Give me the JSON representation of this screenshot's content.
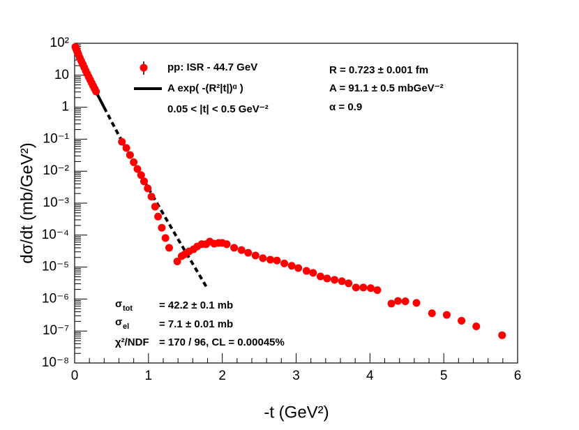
{
  "chart_data": {
    "type": "scatter",
    "x_label": "-t (GeV²)",
    "y_label": "dσ/dt (mb/GeV²)",
    "log_y": true,
    "xlim": [
      0,
      6
    ],
    "xticks": [
      0,
      1,
      2,
      3,
      4,
      5,
      6
    ],
    "ylim": [
      1e-08,
      100
    ],
    "yticks": [
      {
        "value": 1e-08,
        "label": "10⁻⁸"
      },
      {
        "value": 1e-07,
        "label": "10⁻⁷"
      },
      {
        "value": 1e-06,
        "label": "10⁻⁶"
      },
      {
        "value": 1e-05,
        "label": "10⁻⁵"
      },
      {
        "value": 0.0001,
        "label": "10⁻⁴"
      },
      {
        "value": 0.001,
        "label": "10⁻³"
      },
      {
        "value": 0.01,
        "label": "10⁻²"
      },
      {
        "value": 0.1,
        "label": "10⁻¹"
      },
      1,
      10,
      {
        "value": 100,
        "label": "10²"
      }
    ],
    "series": [
      {
        "name": "pp: ISR - 44.7 GeV",
        "color": "#ff0000",
        "x": [
          0.01,
          0.02,
          0.03,
          0.04,
          0.05,
          0.07,
          0.09,
          0.11,
          0.13,
          0.15,
          0.17,
          0.19,
          0.21,
          0.23,
          0.25,
          0.27,
          0.29,
          0.64,
          0.7,
          0.75,
          0.8,
          0.85,
          0.9,
          0.94,
          0.99,
          1.04,
          1.09,
          1.13,
          1.18,
          1.23,
          1.28,
          1.39,
          1.45,
          1.49,
          1.55,
          1.61,
          1.66,
          1.72,
          1.78,
          1.83,
          1.89,
          1.95,
          2.0,
          2.06,
          2.16,
          2.26,
          2.35,
          2.45,
          2.55,
          2.65,
          2.74,
          2.84,
          2.94,
          3.03,
          3.14,
          3.23,
          3.33,
          3.42,
          3.52,
          3.62,
          3.71,
          3.81,
          3.91,
          4.01,
          4.1,
          4.29,
          4.38,
          4.48,
          4.63,
          4.84,
          5.04,
          5.24,
          5.44,
          5.79
        ],
        "values": [
          77,
          67,
          59,
          51.5,
          45.2,
          35.3,
          27.8,
          22,
          17.5,
          13.9,
          11.1,
          8.9,
          7.2,
          5.8,
          4.7,
          3.8,
          3.1,
          0.083,
          0.053,
          0.032,
          0.019,
          0.0117,
          0.0075,
          0.0048,
          0.0029,
          0.0016,
          0.00078,
          0.00038,
          0.00017,
          8.1e-05,
          4e-05,
          1.5e-05,
          2.2e-05,
          2.5e-05,
          3.1e-05,
          3.6e-05,
          4.4e-05,
          5.2e-05,
          5.2e-05,
          6.3e-05,
          5.4e-05,
          5.7e-05,
          5.7e-05,
          5.2e-05,
          4e-05,
          3.4e-05,
          2.8e-05,
          2.3e-05,
          1.9e-05,
          1.7e-05,
          1.6e-05,
          1.3e-05,
          1.1e-05,
          9.3e-06,
          7.6e-06,
          6.6e-06,
          5.1e-06,
          4.4e-06,
          4e-06,
          3.6e-06,
          3.1e-06,
          2.3e-06,
          2.3e-06,
          2.2e-06,
          1.9e-06,
          7.2e-07,
          8.7e-07,
          8.5e-07,
          7.6e-07,
          3.6e-07,
          3.2e-07,
          2.1e-07,
          1.4e-07,
          7.4e-08
        ]
      }
    ],
    "fit": {
      "name": "A exp( -(R²|t|)ᵅ )",
      "color": "#000000",
      "pieces": [
        {
          "style": "solid",
          "x": [
            0,
            0.1,
            0.2,
            0.3,
            0.4
          ],
          "values": [
            91.1,
            24.8,
            8.0,
            2.73,
            0.98
          ]
        },
        {
          "style": "dashed",
          "x": [
            0.4,
            0.6,
            0.8,
            1.0,
            1.2,
            1.4,
            1.6,
            1.8
          ],
          "values": [
            0.98,
            0.13,
            0.0193,
            0.0029,
            0.00046,
            7.5e-05,
            1.26e-05,
            2.1e-06
          ]
        }
      ]
    },
    "fit_range": "0.05 < |t| < 0.5 GeV⁻²",
    "parameters": [
      "R = 0.723 ± 0.001 fm",
      "A = 91.1 ± 0.5 mbGeV⁻²",
      "α  = 0.9"
    ],
    "results": [
      {
        "symbol": "σ",
        "sub": "tot",
        "text": "= 42.2 ± 0.1 mb"
      },
      {
        "symbol": "σ",
        "sub": "el",
        "text": "= 7.1 ± 0.01 mb"
      },
      {
        "symbol": "χ²/NDF",
        "text": "= 170 / 96,  CL = 0.00045%"
      }
    ]
  }
}
